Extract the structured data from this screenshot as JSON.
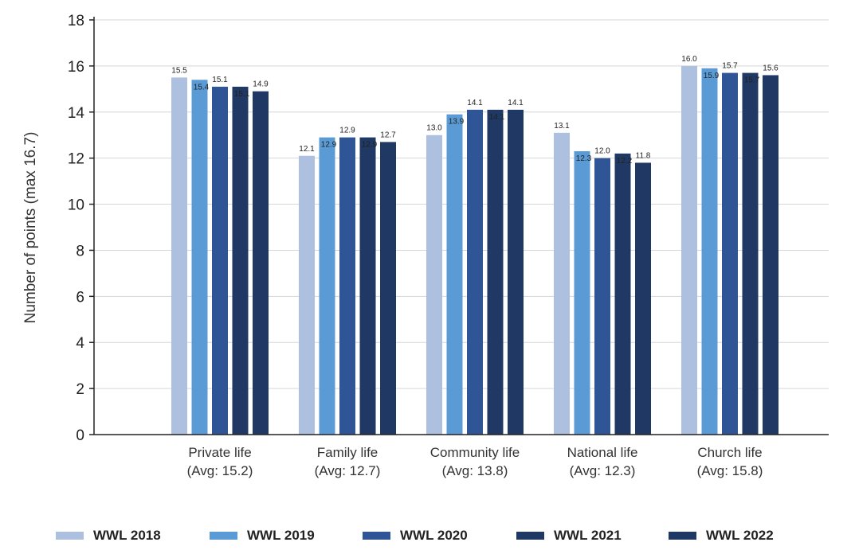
{
  "chart_data": {
    "type": "bar",
    "ylabel": "Number of points (max 16.7)",
    "ylim": [
      0,
      18
    ],
    "yticks": [
      0,
      2,
      4,
      6,
      8,
      10,
      12,
      14,
      16,
      18
    ],
    "grid": true,
    "legend_position": "bottom",
    "categories": [
      [
        "Private life",
        "(Avg: 15.2)"
      ],
      [
        "Family life",
        "(Avg: 12.7)"
      ],
      [
        "Community life",
        "(Avg: 13.8)"
      ],
      [
        "National life",
        "(Avg: 12.3)"
      ],
      [
        "Church life",
        "(Avg: 15.8)"
      ]
    ],
    "series": [
      {
        "name": "WWL 2018",
        "color": "#aec0df",
        "values": [
          15.5,
          12.1,
          13.0,
          13.1,
          16.0
        ]
      },
      {
        "name": "WWL 2019",
        "color": "#5b9bd5",
        "values": [
          15.4,
          12.9,
          13.9,
          12.3,
          15.9
        ]
      },
      {
        "name": "WWL 2020",
        "color": "#2f5597",
        "values": [
          15.1,
          12.9,
          14.1,
          12.0,
          15.7
        ]
      },
      {
        "name": "WWL 2021",
        "color": "#203864",
        "values": [
          15.1,
          12.9,
          14.1,
          12.2,
          15.7
        ]
      },
      {
        "name": "WWL 2022",
        "color": "#1f3864",
        "values": [
          14.9,
          12.7,
          14.1,
          11.8,
          15.6
        ]
      }
    ]
  }
}
